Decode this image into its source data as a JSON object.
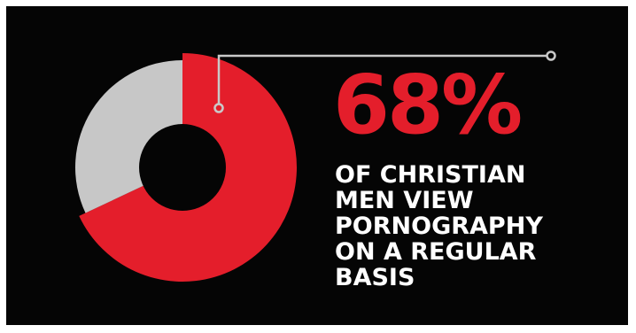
{
  "chart_data": {
    "type": "pie",
    "style": "donut",
    "values": [
      68,
      32
    ],
    "colors": [
      "#e41e2b",
      "#c7c7c7"
    ],
    "headline": "68%",
    "caption_lines": [
      "OF CHRISTIAN",
      "MEN VIEW",
      "PORNOGRAPHY",
      "ON A REGULAR",
      "BASIS"
    ]
  },
  "colors": {
    "background": "#050505",
    "accent": "#e41e2b",
    "rest": "#c7c7c7",
    "text": "#ffffff",
    "leader_line": "#c9c9c9"
  }
}
